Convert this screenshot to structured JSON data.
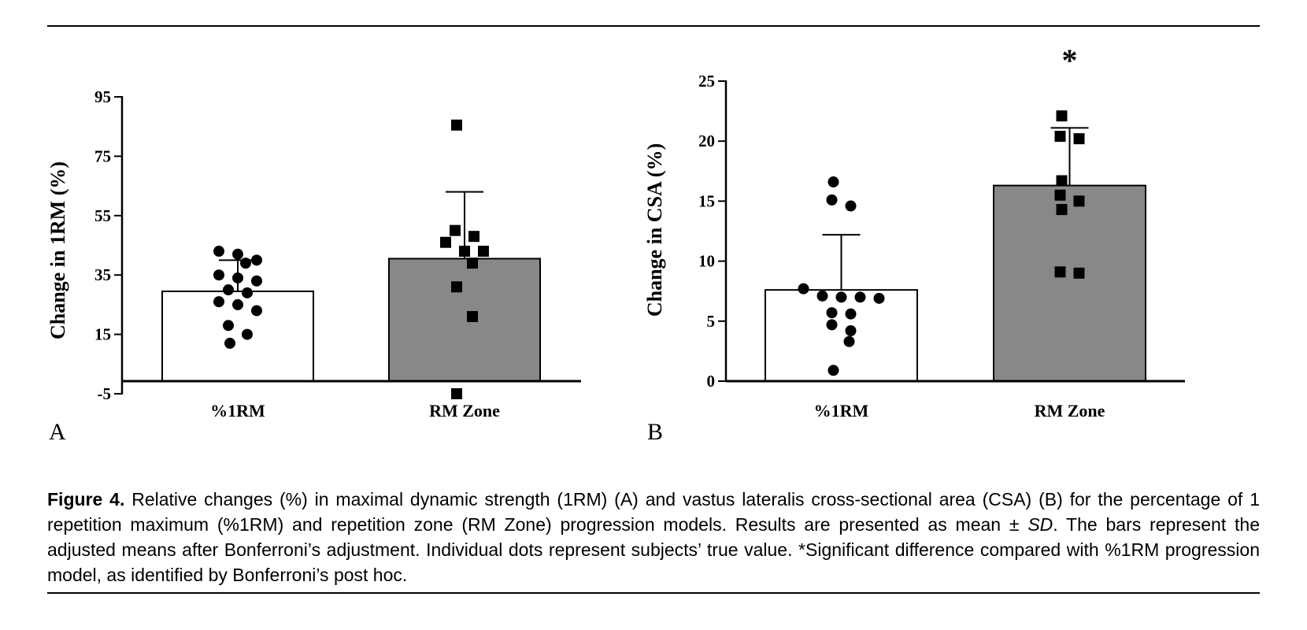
{
  "chart_data": [
    {
      "type": "bar",
      "panel_label": "A",
      "ylabel": "Change in 1RM (%)",
      "ylim": [
        -5,
        95
      ],
      "yticks": [
        -5,
        15,
        35,
        55,
        75,
        95
      ],
      "categories": [
        "%1RM",
        "RM Zone"
      ],
      "values": [
        29.5,
        40.5
      ],
      "sd": [
        10.5,
        22.5
      ],
      "bar_colors": [
        "#ffffff",
        "#888888"
      ],
      "points": [
        {
          "category": "%1RM",
          "marker": "circle",
          "values": [
            43,
            42,
            40,
            39,
            35,
            34,
            33,
            30,
            29,
            26,
            25,
            23,
            18,
            15,
            12
          ]
        },
        {
          "category": "RM Zone",
          "marker": "square",
          "values": [
            85.5,
            50,
            48,
            46,
            43,
            43,
            39,
            31,
            21,
            -5
          ]
        }
      ],
      "annotations": []
    },
    {
      "type": "bar",
      "panel_label": "B",
      "ylabel": "Change in CSA (%)",
      "ylim": [
        0,
        25
      ],
      "yticks": [
        0,
        5,
        10,
        15,
        20,
        25
      ],
      "categories": [
        "%1RM",
        "RM Zone"
      ],
      "values": [
        7.6,
        16.3
      ],
      "sd": [
        4.6,
        4.8
      ],
      "bar_colors": [
        "#ffffff",
        "#888888"
      ],
      "points": [
        {
          "category": "%1RM",
          "marker": "circle",
          "values": [
            16.6,
            15.1,
            14.6,
            7.7,
            7.1,
            7.0,
            7.0,
            6.9,
            5.7,
            5.6,
            4.7,
            4.2,
            3.3,
            0.9
          ]
        },
        {
          "category": "RM Zone",
          "marker": "square",
          "values": [
            22.1,
            20.4,
            20.2,
            16.7,
            15.5,
            15.0,
            14.3,
            9.1,
            9.0
          ]
        }
      ],
      "annotations": [
        "*"
      ]
    }
  ],
  "caption": {
    "label": "Figure 4.",
    "part1": " Relative changes (%) in maximal dynamic strength (1RM) (A) and vastus lateralis cross-sectional area (CSA) (B) for the percentage of 1 repetition maximum (%1RM) and repetition zone (RM Zone) progression models. Results are presented as mean ± ",
    "sd_italic": "SD",
    "part2": ". The bars represent the adjusted means after Bonferroni’s adjustment. Individual dots represent subjects’ true value. *Significant difference compared with %1RM progression model, as identified by Bonferroni’s post hoc."
  }
}
